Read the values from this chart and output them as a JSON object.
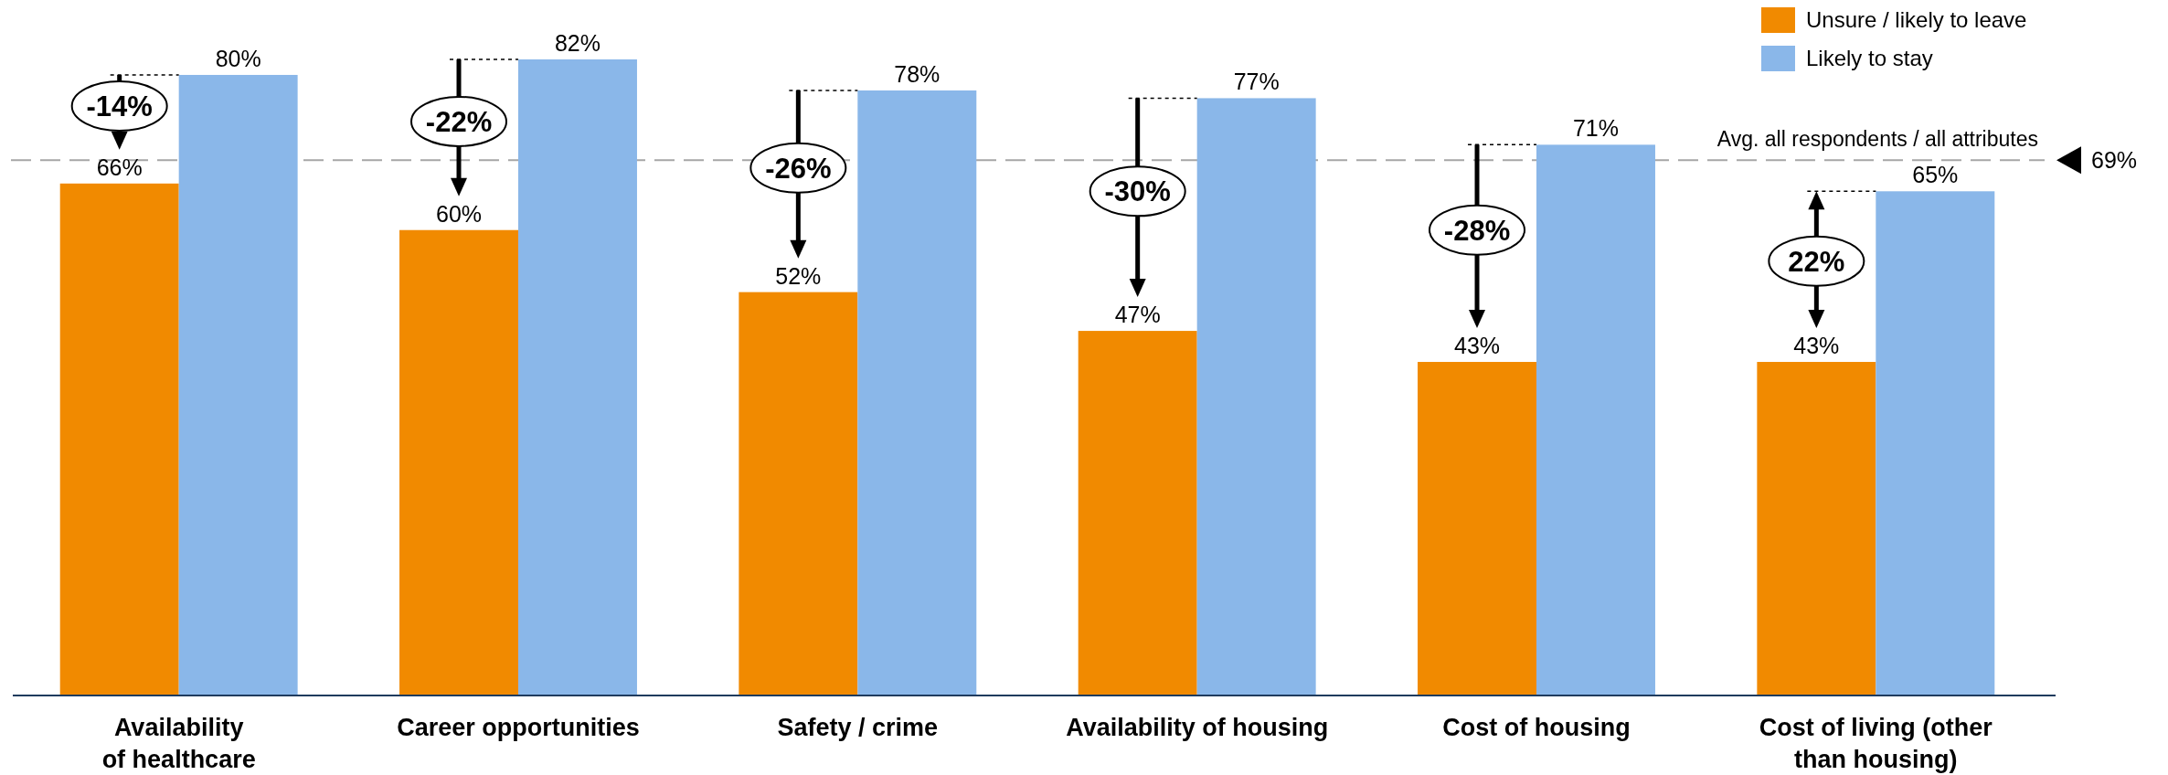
{
  "chart_data": {
    "type": "bar",
    "categories": [
      "Availability\nof healthcare",
      "Career opportunities",
      "Safety / crime",
      "Availability of housing",
      "Cost of housing",
      "Cost of living (other\nthan housing)"
    ],
    "series": [
      {
        "name": "Unsure / likely to leave",
        "color": "#f18a00",
        "values": [
          66,
          60,
          52,
          47,
          43,
          43
        ],
        "value_labels": [
          "66%",
          "60%",
          "52%",
          "47%",
          "43%",
          "43%"
        ]
      },
      {
        "name": "Likely to stay",
        "color": "#8ab7e9",
        "values": [
          80,
          82,
          78,
          77,
          71,
          65
        ],
        "value_labels": [
          "80%",
          "82%",
          "78%",
          "77%",
          "71%",
          "65%"
        ]
      }
    ],
    "tick_labels": "x",
    "legend": "top right",
    "ref_lines": [
      {
        "axis": "y",
        "value": 69,
        "label": "Avg. all respondents / all attributes",
        "color": "#a6a6a6",
        "line_style": "dashed"
      }
    ],
    "annotations": [
      {
        "text": "-14%",
        "x": "Availability\nof healthcare",
        "y": 76
      },
      {
        "text": "-22%",
        "x": "Career opportunities",
        "y": 74
      },
      {
        "text": "-26%",
        "x": "Safety / crime",
        "y": 68
      },
      {
        "text": "-30%",
        "x": "Availability of housing",
        "y": 65
      },
      {
        "text": "-28%",
        "x": "Cost of housing",
        "y": 60
      },
      {
        "text": "22%",
        "x": "Cost of living (other\nthan housing)",
        "y": 56
      },
      "69%"
    ]
  }
}
